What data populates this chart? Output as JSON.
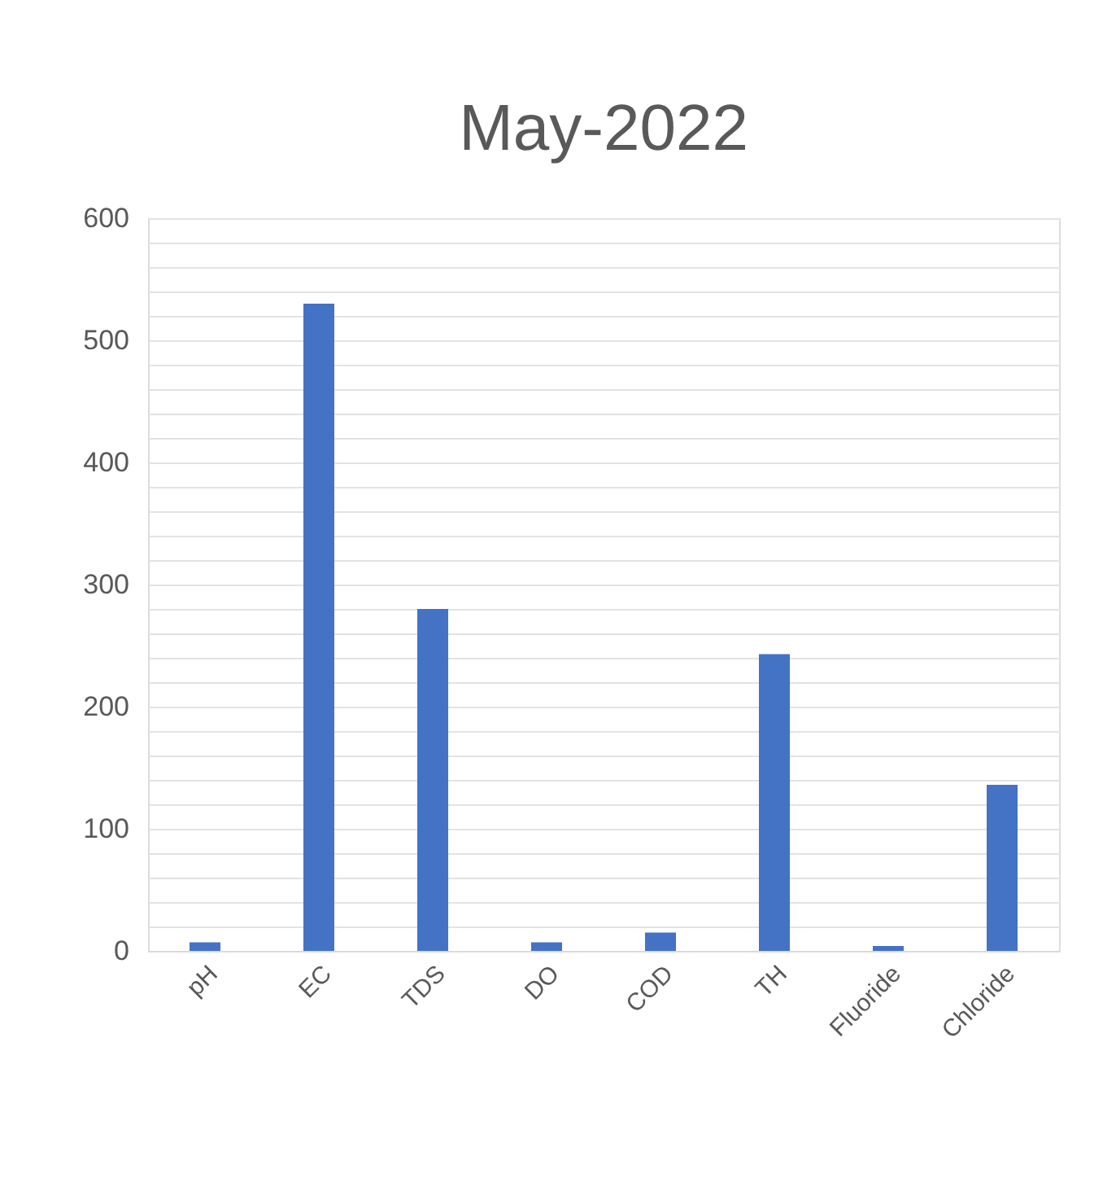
{
  "chart_data": {
    "type": "bar",
    "title": "May-2022",
    "categories": [
      "pH",
      "EC",
      "TDS",
      "DO",
      "COD",
      "TH",
      "Fluoride",
      "Chloride"
    ],
    "values": [
      7,
      530,
      280,
      7,
      15,
      243,
      4,
      136
    ],
    "color": "#4472c4",
    "ylim": [
      0,
      600
    ],
    "yticks": [
      0,
      {
        "value": 20,
        "label": null
      },
      {
        "value": 40,
        "label": null
      },
      {
        "value": 60,
        "label": null
      },
      {
        "value": 80,
        "label": null
      },
      100,
      {
        "value": 120,
        "label": null
      },
      {
        "value": 140,
        "label": null
      },
      {
        "value": 160,
        "label": null
      },
      {
        "value": 180,
        "label": null
      },
      200,
      {
        "value": 220,
        "label": null
      },
      {
        "value": 240,
        "label": null
      },
      {
        "value": 260,
        "label": null
      },
      {
        "value": 280,
        "label": null
      },
      300,
      {
        "value": 320,
        "label": null
      },
      {
        "value": 340,
        "label": null
      },
      {
        "value": 360,
        "label": null
      },
      {
        "value": 380,
        "label": null
      },
      400,
      {
        "value": 420,
        "label": null
      },
      {
        "value": 440,
        "label": null
      },
      {
        "value": 460,
        "label": null
      },
      {
        "value": 480,
        "label": null
      },
      500,
      {
        "value": 520,
        "label": null
      },
      {
        "value": 540,
        "label": null
      },
      {
        "value": 560,
        "label": null
      },
      {
        "value": 580,
        "label": null
      },
      600
    ],
    "grid": "y"
  }
}
